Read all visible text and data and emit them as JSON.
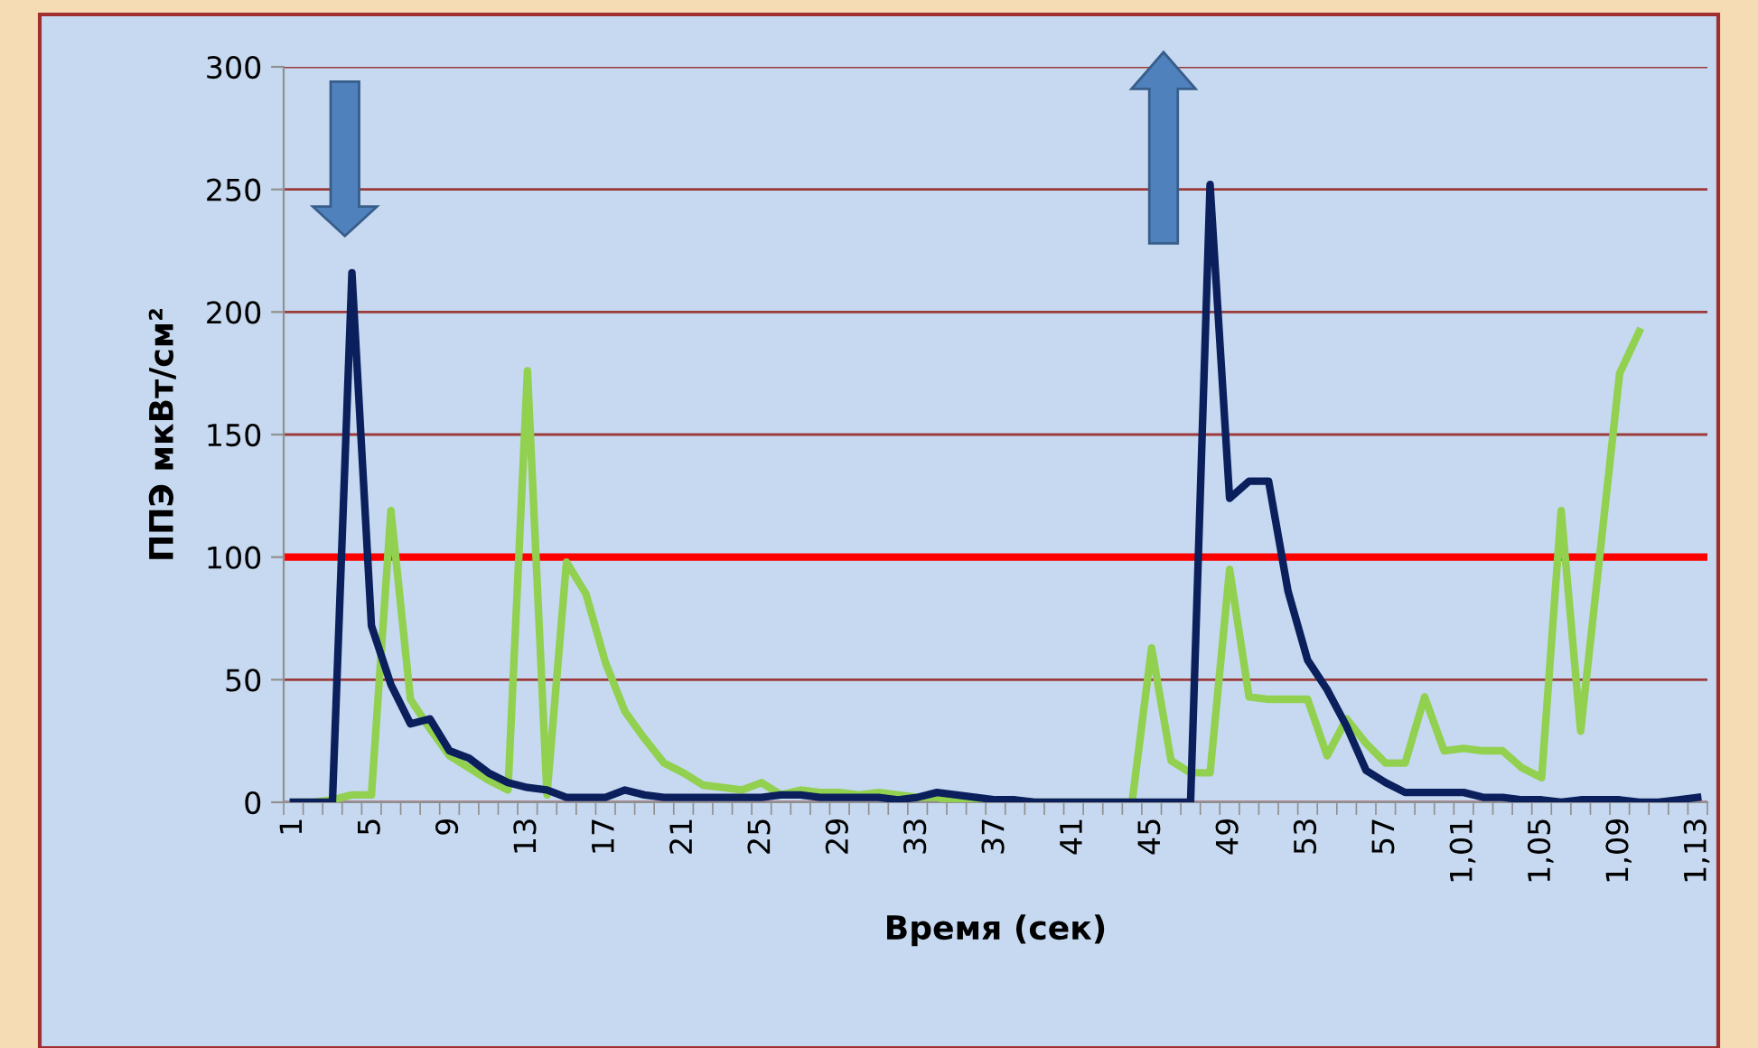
{
  "chart_data": {
    "type": "line",
    "xlabel": "Время (сек)",
    "ylabel": "ППЭ мкВт/см²",
    "categories": [
      "1",
      null,
      null,
      null,
      "5",
      null,
      null,
      null,
      "9",
      null,
      null,
      null,
      "13",
      null,
      null,
      null,
      "17",
      null,
      null,
      null,
      "21",
      null,
      null,
      null,
      "25",
      null,
      null,
      null,
      "29",
      null,
      null,
      null,
      "33",
      null,
      null,
      null,
      "37",
      null,
      null,
      null,
      "41",
      null,
      null,
      null,
      "45",
      null,
      null,
      null,
      "49",
      null,
      null,
      null,
      "53",
      null,
      null,
      null,
      "57",
      null,
      null,
      null,
      "1,01",
      null,
      null,
      null,
      "1,05",
      null,
      null,
      null,
      "1,09",
      null,
      null,
      null,
      "1,13"
    ],
    "series": [
      {
        "color": "#92d050",
        "values": [
          0,
          0,
          1,
          3,
          3,
          119,
          42,
          30,
          19,
          14,
          9,
          5,
          176,
          3,
          98,
          85,
          57,
          37,
          26,
          16,
          12,
          7,
          6,
          5,
          8,
          3,
          5,
          4,
          4,
          3,
          4,
          3,
          2,
          2,
          0,
          0,
          0,
          0,
          0,
          0,
          0,
          0,
          0,
          0,
          63,
          17,
          12,
          12,
          95,
          43,
          42,
          42,
          42,
          19,
          34,
          24,
          16,
          16,
          43,
          21,
          22,
          21,
          21,
          14,
          10,
          119,
          29,
          102,
          175,
          192,
          null,
          null,
          null
        ]
      },
      {
        "color": "#0a1f5c",
        "values": [
          0,
          0,
          0,
          216,
          72,
          48,
          32,
          34,
          21,
          18,
          12,
          8,
          6,
          5,
          2,
          2,
          2,
          5,
          3,
          2,
          2,
          2,
          2,
          2,
          2,
          3,
          3,
          2,
          2,
          2,
          2,
          1,
          2,
          4,
          3,
          2,
          1,
          1,
          0,
          0,
          0,
          0,
          0,
          0,
          0,
          0,
          0,
          252,
          124,
          131,
          131,
          86,
          58,
          46,
          31,
          13,
          8,
          4,
          4,
          4,
          4,
          2,
          2,
          1,
          1,
          0,
          1,
          1,
          1,
          0,
          0,
          1,
          2
        ]
      }
    ],
    "ylim": [
      0,
      300
    ],
    "yticks": [
      0,
      50,
      100,
      150,
      200,
      250,
      300
    ],
    "grid": "y",
    "legend": false,
    "marker": "none",
    "line_style": "solid",
    "ref_lines": [
      {
        "axis": "y",
        "value": 100,
        "color": "#ff0000"
      }
    ]
  }
}
